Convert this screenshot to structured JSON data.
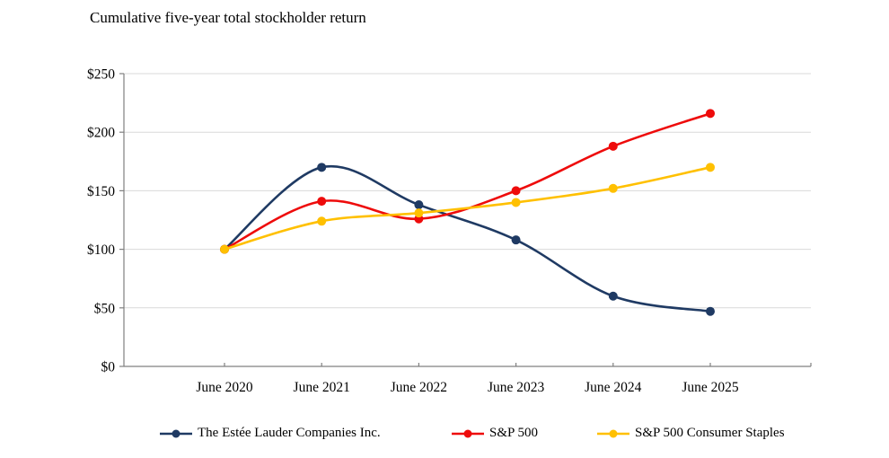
{
  "title": "Cumulative five-year total stockholder return",
  "chart_data": {
    "type": "line",
    "title": "Cumulative five-year total stockholder return",
    "categories": [
      "June 2020",
      "June 2021",
      "June 2022",
      "June 2023",
      "June 2024",
      "June 2025"
    ],
    "series": [
      {
        "name": "The Estée Lauder Companies Inc.",
        "color": "#1f3a63",
        "values": [
          100,
          170,
          138,
          108,
          60,
          47
        ]
      },
      {
        "name": "S&P 500",
        "color": "#ee0b0b",
        "values": [
          100,
          141,
          126,
          150,
          188,
          216
        ]
      },
      {
        "name": "S&P 500 Consumer Staples",
        "color": "#ffc000",
        "values": [
          100,
          124,
          131,
          140,
          152,
          170
        ]
      }
    ],
    "ylim": [
      0,
      250
    ],
    "ytick_step": 50,
    "ytick_labels": [
      "$0",
      "$50",
      "$100",
      "$150",
      "$200",
      "$250"
    ],
    "xlabel": "",
    "ylabel": "",
    "grid": "horizontal",
    "smooth_lines": true,
    "legend_position": "bottom",
    "colors": {
      "axis": "#808080",
      "gridline": "#d9d9d9",
      "text": "#000000",
      "background": "#ffffff"
    }
  }
}
